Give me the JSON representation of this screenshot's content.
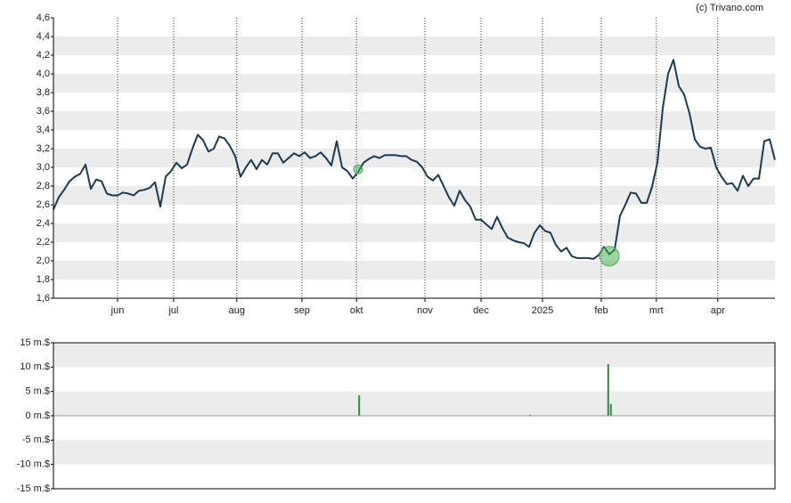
{
  "chart_data": [
    {
      "type": "line",
      "source": "(c) Trivano.com",
      "color": "#1b3a55",
      "grid": true,
      "x": [
        0,
        1,
        2,
        3,
        4,
        5,
        6,
        7,
        8,
        9,
        10,
        11,
        12,
        13,
        14,
        15,
        16,
        17,
        18,
        19,
        20,
        21,
        22,
        23,
        24,
        25,
        26,
        27,
        28,
        29,
        30,
        31,
        32,
        33,
        34,
        35,
        36,
        37,
        38,
        39,
        40,
        41,
        42,
        43,
        44,
        45,
        46,
        47,
        48,
        49,
        50,
        51,
        52,
        53,
        54,
        55,
        56,
        57,
        58,
        59,
        60,
        61,
        62,
        63,
        64,
        65,
        66,
        67,
        68,
        69,
        70,
        71,
        72,
        73,
        74,
        75,
        76,
        77,
        78,
        79,
        80,
        81,
        82,
        83,
        84,
        85,
        86,
        87,
        88,
        89,
        90,
        91,
        92,
        93,
        94,
        95,
        96,
        97,
        98,
        99,
        100,
        101,
        102,
        103,
        104,
        105,
        106,
        107,
        108,
        109,
        110,
        111,
        112,
        113,
        114,
        115,
        116,
        117,
        118,
        119,
        120,
        121,
        122,
        123,
        124,
        125,
        126,
        127,
        128,
        129,
        130,
        131,
        132,
        133,
        134,
        135
      ],
      "values": [
        2.55,
        2.68,
        2.76,
        2.85,
        2.9,
        2.93,
        3.03,
        2.77,
        2.87,
        2.85,
        2.72,
        2.7,
        2.7,
        2.73,
        2.72,
        2.7,
        2.75,
        2.76,
        2.78,
        2.84,
        2.58,
        2.9,
        2.96,
        3.05,
        2.99,
        3.03,
        3.2,
        3.35,
        3.29,
        3.17,
        3.2,
        3.33,
        3.31,
        3.23,
        3.12,
        2.9,
        3.0,
        3.08,
        2.98,
        3.08,
        3.03,
        3.15,
        3.15,
        3.05,
        3.1,
        3.15,
        3.12,
        3.16,
        3.1,
        3.12,
        3.16,
        3.1,
        3.02,
        3.28,
        3.0,
        2.96,
        2.88,
        2.95,
        3.05,
        3.09,
        3.12,
        3.1,
        3.13,
        3.13,
        3.13,
        3.12,
        3.12,
        3.08,
        3.06,
        3.0,
        2.9,
        2.86,
        2.92,
        2.8,
        2.68,
        2.59,
        2.75,
        2.65,
        2.58,
        2.44,
        2.44,
        2.39,
        2.34,
        2.47,
        2.35,
        2.25,
        2.22,
        2.2,
        2.19,
        2.15,
        2.3,
        2.38,
        2.32,
        2.3,
        2.17,
        2.1,
        2.14,
        2.05,
        2.03,
        2.03,
        2.03,
        2.02,
        2.06,
        2.15,
        2.07,
        2.12,
        2.48,
        2.6,
        2.73,
        2.72,
        2.62,
        2.62,
        2.79,
        3.05,
        3.63,
        4.0,
        4.15,
        3.87,
        3.78,
        3.58,
        3.3,
        3.22,
        3.2,
        3.21,
        3.0,
        2.9,
        2.82,
        2.83,
        2.75,
        2.91,
        2.8,
        2.88,
        2.88,
        3.28,
        3.3,
        3.08
      ],
      "markers": [
        {
          "x": 104,
          "value": 2.05,
          "color": "#4caf50"
        },
        {
          "x": 57,
          "value": 2.98,
          "color": "#4caf50"
        }
      ],
      "xlim": [
        0,
        135
      ],
      "xticks": [
        {
          "value": 12,
          "label": "jun"
        },
        {
          "value": 22.5,
          "label": "jul"
        },
        {
          "value": 34.3,
          "label": "aug"
        },
        {
          "value": 46.5,
          "label": "sep"
        },
        {
          "value": 56.7,
          "label": "okt"
        },
        {
          "value": 69.5,
          "label": "nov"
        },
        {
          "value": 80,
          "label": "dec"
        },
        {
          "value": 91.5,
          "label": "2025"
        },
        {
          "value": 102.5,
          "label": "feb"
        },
        {
          "value": 112.8,
          "label": "mrt"
        },
        {
          "value": 124.3,
          "label": "apr"
        }
      ],
      "ylim": [
        1.6,
        4.6
      ],
      "yticks": [
        {
          "value": 1.6,
          "label": "1,6"
        },
        {
          "value": 1.8,
          "label": "1,8"
        },
        {
          "value": 2.0,
          "label": "2,0"
        },
        {
          "value": 2.2,
          "label": "2,2"
        },
        {
          "value": 2.4,
          "label": "2,4"
        },
        {
          "value": 2.6,
          "label": "2,6"
        },
        {
          "value": 2.8,
          "label": "2,8"
        },
        {
          "value": 3.0,
          "label": "3,0"
        },
        {
          "value": 3.2,
          "label": "3,2"
        },
        {
          "value": 3.4,
          "label": "3,4"
        },
        {
          "value": 3.6,
          "label": "3,6"
        },
        {
          "value": 3.8,
          "label": "3,8"
        },
        {
          "value": 4.0,
          "label": "4,0"
        },
        {
          "value": 4.2,
          "label": "4,2"
        },
        {
          "value": 4.4,
          "label": "4,4"
        },
        {
          "value": 4.6,
          "label": "4,6"
        }
      ]
    },
    {
      "type": "bar",
      "color": "#2e8b3a",
      "grid": true,
      "x": [
        57.2,
        89.2,
        103.8,
        104.3
      ],
      "values": [
        4.2,
        0.2,
        10.6,
        2.4
      ],
      "xlim": [
        0,
        135
      ],
      "ylim": [
        -15,
        15
      ],
      "yticks": [
        {
          "value": -15,
          "label": "-15 m.$"
        },
        {
          "value": -10,
          "label": "-10 m.$"
        },
        {
          "value": -5,
          "label": "-5 m.$"
        },
        {
          "value": 0,
          "label": "0 m.$"
        },
        {
          "value": 5,
          "label": "5 m.$"
        },
        {
          "value": 10,
          "label": "10 m.$"
        },
        {
          "value": 15,
          "label": "15 m.$"
        }
      ]
    }
  ]
}
